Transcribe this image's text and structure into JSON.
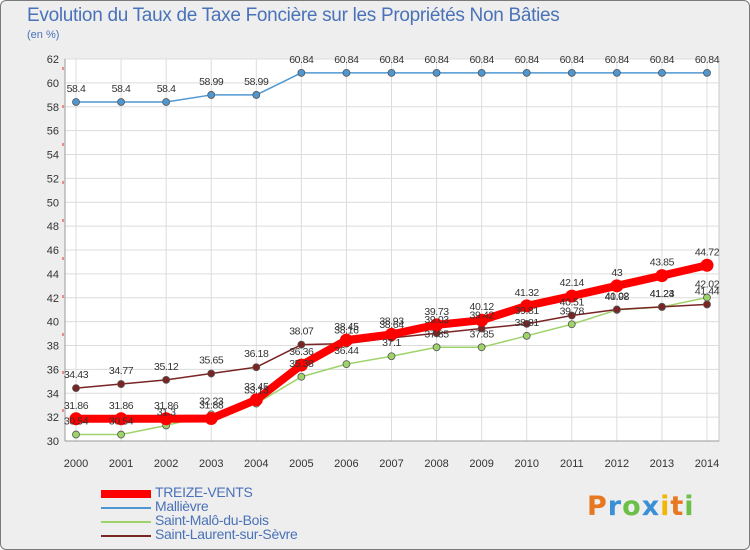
{
  "chart_data": {
    "type": "line",
    "title": "Evolution du Taux de Taxe Foncière sur les Propriétés Non Bâties",
    "subtitle": "(en %)",
    "categories": [
      "2000",
      "2001",
      "2002",
      "2003",
      "2004",
      "2005",
      "2006",
      "2007",
      "2008",
      "2009",
      "2010",
      "2011",
      "2012",
      "2013",
      "2014"
    ],
    "ylim": [
      30,
      62
    ],
    "yticks": [
      30,
      32,
      34,
      36,
      38,
      40,
      42,
      44,
      46,
      48,
      50,
      52,
      54,
      56,
      58,
      60,
      62
    ],
    "grid": true,
    "legend_position": "bottom-left",
    "series": [
      {
        "name": "TREIZE-VENTS",
        "color": "#ff0000",
        "values": [
          31.86,
          31.86,
          31.86,
          31.88,
          33.45,
          36.36,
          38.45,
          38.93,
          39.73,
          40.12,
          41.32,
          42.14,
          43,
          43.85,
          44.72
        ],
        "labels": [
          "31.86",
          "31.86",
          "31.86",
          "31.88",
          "33.45",
          "36.36",
          "38.45",
          "38.93",
          "39.73",
          "40.12",
          "41.32",
          "42.14",
          "43",
          "43.85",
          "44.72"
        ]
      },
      {
        "name": "Mallièvre",
        "color": "#4f97d0",
        "values": [
          58.4,
          58.4,
          58.4,
          58.99,
          58.99,
          60.84,
          60.84,
          60.84,
          60.84,
          60.84,
          60.84,
          60.84,
          60.84,
          60.84,
          60.84
        ],
        "labels": [
          "58.4",
          "58.4",
          "58.4",
          "58.99",
          "58.99",
          "60.84",
          "60.84",
          "60.84",
          "60.84",
          "60.84",
          "60.84",
          "60.84",
          "60.84",
          "60.84",
          "60.84"
        ]
      },
      {
        "name": "Saint-Malô-du-Bois",
        "color": "#9ed36a",
        "values": [
          30.54,
          30.54,
          31.3,
          32.23,
          33.13,
          35.38,
          36.44,
          37.1,
          37.85,
          37.85,
          38.81,
          39.78,
          40.98,
          41.23,
          42.02
        ],
        "labels": [
          "30.54",
          "30.54",
          "31.3",
          "32.23",
          "33.13",
          "35.38",
          "36.44",
          "37.1",
          "37.85",
          "37.85",
          "38.81",
          "39.78",
          "40.98",
          "41.23",
          "42.02"
        ]
      },
      {
        "name": "Saint-Laurent-sur-Sèvre",
        "color": "#7a2424",
        "values": [
          34.43,
          34.77,
          35.12,
          35.65,
          36.18,
          38.07,
          38.16,
          38.64,
          39.03,
          39.42,
          39.81,
          40.51,
          41.02,
          41.24,
          41.44
        ],
        "labels": [
          "34.43",
          "34.77",
          "35.12",
          "35.65",
          "36.18",
          "38.07",
          "38.16",
          "38.64",
          "39.03",
          "39.42",
          "39.81",
          "40.51",
          "41.02",
          "41.24",
          "41.44"
        ]
      }
    ]
  },
  "brand": {
    "letters": [
      "P",
      "r",
      "o",
      "x",
      "i",
      "t",
      "i"
    ],
    "colors": [
      "#e87722",
      "#3a8fd6",
      "#6cc04a",
      "#3a8fd6",
      "#f2b705",
      "#e87722",
      "#6cc04a"
    ]
  }
}
